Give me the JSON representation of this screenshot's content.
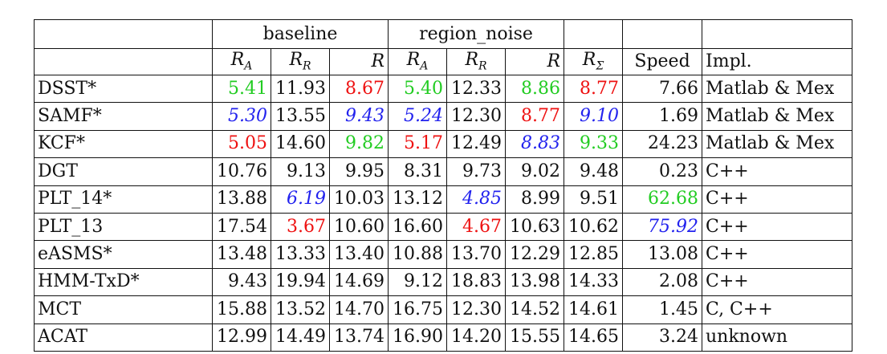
{
  "colors": {
    "first": "#ee1111",
    "second": "#22cc22",
    "third": "#2222ee"
  },
  "groups": {
    "baseline": "baseline",
    "region_noise": "region_noise"
  },
  "headers": {
    "ra": "R",
    "ra_sub": "A",
    "rr": "R",
    "rr_sub": "R",
    "r": "R",
    "rsum": "R",
    "rsum_sub": "Σ",
    "speed": "Speed",
    "impl": "Impl."
  },
  "rows": [
    {
      "name": "DSST*",
      "cells": [
        {
          "v": "5.41",
          "s": "green"
        },
        {
          "v": "11.93",
          "s": ""
        },
        {
          "v": "8.67",
          "s": "red"
        },
        {
          "v": "5.40",
          "s": "green"
        },
        {
          "v": "12.33",
          "s": ""
        },
        {
          "v": "8.86",
          "s": "green"
        },
        {
          "v": "8.77",
          "s": "red"
        },
        {
          "v": "7.66",
          "s": ""
        }
      ],
      "impl": "Matlab & Mex"
    },
    {
      "name": "SAMF*",
      "cells": [
        {
          "v": "5.30",
          "s": "blue"
        },
        {
          "v": "13.55",
          "s": ""
        },
        {
          "v": "9.43",
          "s": "blue"
        },
        {
          "v": "5.24",
          "s": "blue"
        },
        {
          "v": "12.30",
          "s": ""
        },
        {
          "v": "8.77",
          "s": "red"
        },
        {
          "v": "9.10",
          "s": "blue"
        },
        {
          "v": "1.69",
          "s": ""
        }
      ],
      "impl": "Matlab & Mex"
    },
    {
      "name": "KCF*",
      "cells": [
        {
          "v": "5.05",
          "s": "red"
        },
        {
          "v": "14.60",
          "s": ""
        },
        {
          "v": "9.82",
          "s": "green"
        },
        {
          "v": "5.17",
          "s": "red"
        },
        {
          "v": "12.49",
          "s": ""
        },
        {
          "v": "8.83",
          "s": "blue"
        },
        {
          "v": "9.33",
          "s": "green"
        },
        {
          "v": "24.23",
          "s": ""
        }
      ],
      "impl": "Matlab & Mex"
    },
    {
      "name": "DGT",
      "cells": [
        {
          "v": "10.76",
          "s": ""
        },
        {
          "v": "9.13",
          "s": ""
        },
        {
          "v": "9.95",
          "s": ""
        },
        {
          "v": "8.31",
          "s": ""
        },
        {
          "v": "9.73",
          "s": ""
        },
        {
          "v": "9.02",
          "s": ""
        },
        {
          "v": "9.48",
          "s": ""
        },
        {
          "v": "0.23",
          "s": ""
        }
      ],
      "impl": "C++"
    },
    {
      "name": "PLT_14*",
      "cells": [
        {
          "v": "13.88",
          "s": ""
        },
        {
          "v": "6.19",
          "s": "blue"
        },
        {
          "v": "10.03",
          "s": ""
        },
        {
          "v": "13.12",
          "s": ""
        },
        {
          "v": "4.85",
          "s": "blue"
        },
        {
          "v": "8.99",
          "s": ""
        },
        {
          "v": "9.51",
          "s": ""
        },
        {
          "v": "62.68",
          "s": "green"
        }
      ],
      "impl": "C++"
    },
    {
      "name": "PLT_13",
      "cells": [
        {
          "v": "17.54",
          "s": ""
        },
        {
          "v": "3.67",
          "s": "red"
        },
        {
          "v": "10.60",
          "s": ""
        },
        {
          "v": "16.60",
          "s": ""
        },
        {
          "v": "4.67",
          "s": "red"
        },
        {
          "v": "10.63",
          "s": ""
        },
        {
          "v": "10.62",
          "s": ""
        },
        {
          "v": "75.92",
          "s": "blue"
        }
      ],
      "impl": "C++"
    },
    {
      "name": "eASMS*",
      "cells": [
        {
          "v": "13.48",
          "s": ""
        },
        {
          "v": "13.33",
          "s": ""
        },
        {
          "v": "13.40",
          "s": ""
        },
        {
          "v": "10.88",
          "s": ""
        },
        {
          "v": "13.70",
          "s": ""
        },
        {
          "v": "12.29",
          "s": ""
        },
        {
          "v": "12.85",
          "s": ""
        },
        {
          "v": "13.08",
          "s": ""
        }
      ],
      "impl": "C++"
    },
    {
      "name": "HMM-TxD*",
      "cells": [
        {
          "v": "9.43",
          "s": ""
        },
        {
          "v": "19.94",
          "s": ""
        },
        {
          "v": "14.69",
          "s": ""
        },
        {
          "v": "9.12",
          "s": ""
        },
        {
          "v": "18.83",
          "s": ""
        },
        {
          "v": "13.98",
          "s": ""
        },
        {
          "v": "14.33",
          "s": ""
        },
        {
          "v": "2.08",
          "s": ""
        }
      ],
      "impl": "C++"
    },
    {
      "name": "MCT",
      "cells": [
        {
          "v": "15.88",
          "s": ""
        },
        {
          "v": "13.52",
          "s": ""
        },
        {
          "v": "14.70",
          "s": ""
        },
        {
          "v": "16.75",
          "s": ""
        },
        {
          "v": "12.30",
          "s": ""
        },
        {
          "v": "14.52",
          "s": ""
        },
        {
          "v": "14.61",
          "s": ""
        },
        {
          "v": "1.45",
          "s": ""
        }
      ],
      "impl": "C, C++"
    },
    {
      "name": "ACAT",
      "cells": [
        {
          "v": "12.99",
          "s": ""
        },
        {
          "v": "14.49",
          "s": ""
        },
        {
          "v": "13.74",
          "s": ""
        },
        {
          "v": "16.90",
          "s": ""
        },
        {
          "v": "14.20",
          "s": ""
        },
        {
          "v": "15.55",
          "s": ""
        },
        {
          "v": "14.65",
          "s": ""
        },
        {
          "v": "3.24",
          "s": ""
        }
      ],
      "impl": "unknown"
    }
  ]
}
